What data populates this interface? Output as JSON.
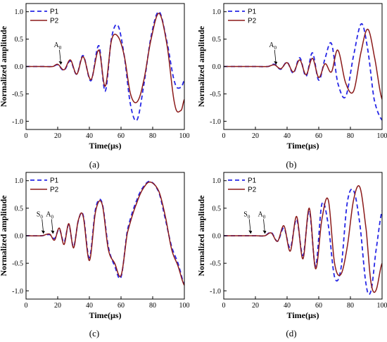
{
  "chart_data": [
    {
      "type": "line",
      "panel_label": "(a)",
      "xlabel": "Time(μs)",
      "ylabel": "Normalized amplitude",
      "xlim": [
        0,
        100
      ],
      "ylim": [
        -1.15,
        1.15
      ],
      "xticks": [
        0,
        20,
        40,
        60,
        80,
        100
      ],
      "yticks": [
        -1.0,
        -0.5,
        0.0,
        0.5,
        1.0
      ],
      "ytick_labels": [
        "-1.0",
        "-0.5",
        "0.0",
        "0.5",
        "1.0"
      ],
      "legend_position": "top-left",
      "annotations": [
        {
          "label": "A",
          "sub": "0",
          "x": 22,
          "y": 0.02
        }
      ],
      "series": [
        {
          "name": "P1",
          "color": "#2727e6",
          "style": "dashed",
          "x": [
            0,
            10,
            17,
            20,
            24,
            28,
            32,
            36,
            41,
            46,
            50,
            54,
            58,
            62,
            66,
            70,
            74,
            79,
            84,
            89,
            94,
            98,
            100
          ],
          "y": [
            0,
            0,
            0,
            0.03,
            -0.07,
            0.1,
            -0.14,
            0.2,
            -0.26,
            0.38,
            -0.45,
            0.52,
            0.75,
            0.2,
            -0.7,
            -0.98,
            -0.4,
            0.55,
            1.0,
            0.45,
            -0.3,
            -0.38,
            -0.25
          ]
        },
        {
          "name": "P2",
          "color": "#8b1a1a",
          "style": "solid",
          "x": [
            0,
            10,
            17,
            20,
            24,
            28,
            32,
            36,
            41,
            46,
            50,
            54,
            58,
            62,
            66,
            70,
            74,
            79,
            84,
            89,
            94,
            98,
            100
          ],
          "y": [
            0,
            0,
            0,
            0.04,
            -0.06,
            0.12,
            -0.14,
            0.18,
            -0.24,
            0.3,
            -0.36,
            0.48,
            0.55,
            0.2,
            -0.5,
            -0.65,
            -0.3,
            0.5,
            0.97,
            0.4,
            -0.7,
            -0.8,
            -0.6
          ]
        }
      ]
    },
    {
      "type": "line",
      "panel_label": "(b)",
      "xlabel": "Time(μs)",
      "ylabel": "Normalized amplitude",
      "xlim": [
        0,
        100
      ],
      "ylim": [
        -1.15,
        1.15
      ],
      "xticks": [
        0,
        20,
        40,
        60,
        80,
        100
      ],
      "yticks": [
        -1.0,
        -0.5,
        0.0,
        0.5,
        1.0
      ],
      "ytick_labels": [
        "-1.0",
        "-0.5",
        "0.0",
        "0.5",
        "1.0"
      ],
      "legend_position": "top-left",
      "annotations": [
        {
          "label": "A",
          "sub": "0",
          "x": 33,
          "y": 0.02
        }
      ],
      "series": [
        {
          "name": "P1",
          "color": "#2727e6",
          "style": "dashed",
          "x": [
            0,
            20,
            28,
            32,
            36,
            40,
            44,
            48,
            52,
            56,
            60,
            64,
            68,
            72,
            77,
            82,
            87,
            91,
            95,
            100
          ],
          "y": [
            0,
            0,
            0,
            0.04,
            -0.05,
            0.08,
            -0.12,
            0.16,
            -0.18,
            0.25,
            -0.25,
            0.15,
            0.42,
            -0.3,
            -0.55,
            0.2,
            0.78,
            0.3,
            -0.6,
            -0.98
          ]
        },
        {
          "name": "P2",
          "color": "#8b1a1a",
          "style": "solid",
          "x": [
            0,
            20,
            28,
            32,
            36,
            40,
            44,
            48,
            52,
            56,
            60,
            64,
            68,
            72,
            77,
            82,
            87,
            91,
            95,
            100
          ],
          "y": [
            0,
            0,
            0,
            0.03,
            -0.04,
            0.07,
            -0.1,
            0.12,
            -0.15,
            0.15,
            -0.2,
            0.05,
            -0.1,
            0.3,
            -0.3,
            -0.45,
            0.3,
            0.68,
            0.2,
            -0.6
          ]
        }
      ]
    },
    {
      "type": "line",
      "panel_label": "(c)",
      "xlabel": "Time(μs)",
      "ylabel": "Normalized amplitude",
      "xlim": [
        0,
        100
      ],
      "ylim": [
        -1.15,
        1.15
      ],
      "xticks": [
        0,
        20,
        40,
        60,
        80,
        100
      ],
      "yticks": [
        -1.0,
        -0.5,
        0.0,
        0.5,
        1.0
      ],
      "ytick_labels": [
        "-1.0",
        "-0.5",
        "0.0",
        "0.5",
        "1.0"
      ],
      "legend_position": "top-left",
      "annotations": [
        {
          "label": "S",
          "sub": "0",
          "x": 11,
          "y": 0.02
        },
        {
          "label": "A",
          "sub": "0",
          "x": 17,
          "y": 0.02
        }
      ],
      "series": [
        {
          "name": "P1",
          "color": "#2727e6",
          "style": "dashed",
          "x": [
            0,
            10,
            15,
            18,
            21,
            24,
            27,
            30,
            33,
            36,
            40,
            44,
            48,
            52,
            56,
            60,
            64,
            70,
            75,
            79,
            84,
            88,
            92,
            96,
            100
          ],
          "y": [
            0,
            0,
            0.02,
            -0.05,
            0.12,
            -0.12,
            0.2,
            -0.2,
            0.27,
            0.38,
            -0.4,
            0.5,
            0.6,
            -0.2,
            -0.55,
            -0.75,
            0.1,
            0.65,
            0.92,
            0.98,
            0.78,
            0.3,
            -0.2,
            -0.5,
            -0.88
          ]
        },
        {
          "name": "P2",
          "color": "#8b1a1a",
          "style": "solid",
          "x": [
            0,
            10,
            15,
            18,
            21,
            24,
            27,
            30,
            33,
            36,
            40,
            44,
            48,
            52,
            56,
            60,
            64,
            70,
            75,
            79,
            84,
            88,
            92,
            96,
            100
          ],
          "y": [
            0,
            0,
            0.03,
            -0.08,
            0.14,
            -0.16,
            0.22,
            -0.22,
            0.28,
            0.36,
            -0.45,
            0.45,
            0.58,
            -0.25,
            -0.5,
            -0.72,
            0.05,
            0.6,
            0.9,
            0.97,
            0.8,
            0.35,
            -0.25,
            -0.55,
            -0.9
          ]
        }
      ]
    },
    {
      "type": "line",
      "panel_label": "(d)",
      "xlabel": "Time(μs)",
      "ylabel": "Normalized amplitude",
      "xlim": [
        0,
        100
      ],
      "ylim": [
        -1.15,
        1.15
      ],
      "xticks": [
        0,
        20,
        40,
        60,
        80,
        100
      ],
      "yticks": [
        -1.0,
        -0.5,
        0.0,
        0.5,
        1.0
      ],
      "ytick_labels": [
        "-1.0",
        "-0.5",
        "0.0",
        "0.5",
        "1.0"
      ],
      "legend_position": "top-left",
      "annotations": [
        {
          "label": "S",
          "sub": "0",
          "x": 17,
          "y": 0.02
        },
        {
          "label": "A",
          "sub": "0",
          "x": 26,
          "y": 0.02
        }
      ],
      "series": [
        {
          "name": "P1",
          "color": "#2727e6",
          "style": "dashed",
          "x": [
            0,
            20,
            26,
            30,
            34,
            38,
            42,
            46,
            50,
            54,
            58,
            62,
            66,
            70,
            74,
            78,
            82,
            86,
            90,
            93,
            96,
            100
          ],
          "y": [
            0,
            0,
            0,
            0.06,
            -0.1,
            0.14,
            -0.22,
            0.3,
            -0.36,
            0.45,
            -0.55,
            0.58,
            0.2,
            -0.75,
            -0.6,
            0.6,
            0.82,
            0.2,
            -0.9,
            -1.0,
            -0.3,
            0.45
          ]
        },
        {
          "name": "P2",
          "color": "#8b1a1a",
          "style": "solid",
          "x": [
            0,
            20,
            26,
            30,
            34,
            38,
            42,
            46,
            50,
            54,
            58,
            62,
            66,
            70,
            74,
            78,
            82,
            86,
            90,
            93,
            96,
            100
          ],
          "y": [
            0,
            0,
            0,
            0.05,
            -0.1,
            0.18,
            -0.28,
            0.35,
            -0.42,
            0.5,
            -0.6,
            0.3,
            0.65,
            -0.5,
            -0.7,
            -0.2,
            0.65,
            0.88,
            0.1,
            -0.85,
            -1.0,
            -0.5
          ]
        }
      ]
    }
  ]
}
